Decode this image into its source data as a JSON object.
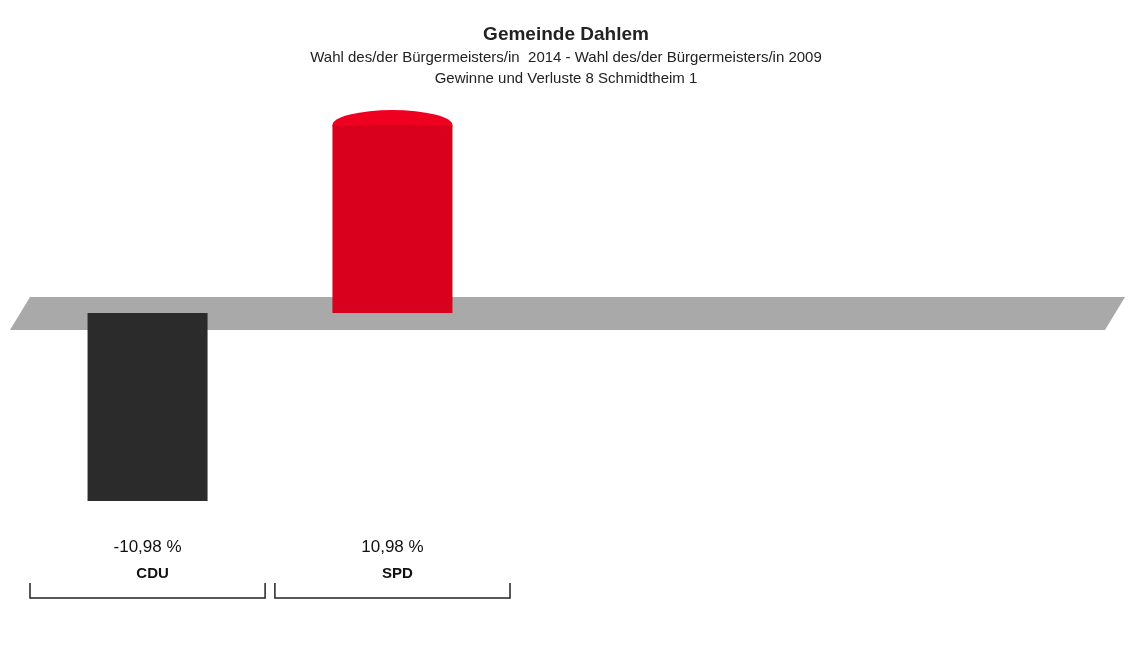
{
  "chart_data": {
    "type": "bar",
    "title": "Gemeinde Dahlem",
    "subtitle": "Wahl des/der Bürgermeisters/in  2014 - Wahl des/der Bürgermeisters/in 2009\nGewinne und Verluste 8 Schmidtheim 1",
    "categories": [
      "CDU",
      "SPD"
    ],
    "values": [
      -10.98,
      10.98
    ],
    "value_labels": [
      "-10,98 %",
      "10,98 %"
    ],
    "colors": [
      "#2b2b2b",
      "#d8001d"
    ]
  }
}
